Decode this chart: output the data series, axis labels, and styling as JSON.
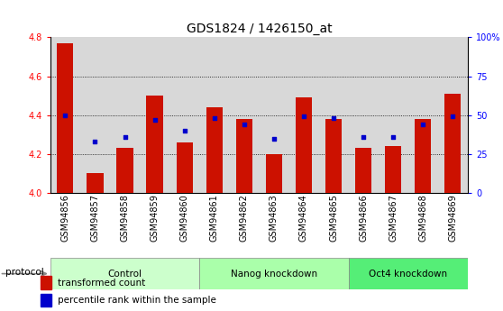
{
  "title": "GDS1824 / 1426150_at",
  "samples": [
    "GSM94856",
    "GSM94857",
    "GSM94858",
    "GSM94859",
    "GSM94860",
    "GSM94861",
    "GSM94862",
    "GSM94863",
    "GSM94864",
    "GSM94865",
    "GSM94866",
    "GSM94867",
    "GSM94868",
    "GSM94869"
  ],
  "transformed_count": [
    4.77,
    4.1,
    4.23,
    4.5,
    4.26,
    4.44,
    4.38,
    4.2,
    4.49,
    4.38,
    4.23,
    4.24,
    4.38,
    4.51
  ],
  "percentile_pct": [
    50,
    33,
    36,
    47,
    40,
    48,
    44,
    35,
    49,
    48,
    36,
    36,
    44,
    49
  ],
  "groups": [
    {
      "label": "Control",
      "start": 0,
      "end": 4,
      "color": "#ccffcc"
    },
    {
      "label": "Nanog knockdown",
      "start": 5,
      "end": 9,
      "color": "#aaffaa"
    },
    {
      "label": "Oct4 knockdown",
      "start": 10,
      "end": 13,
      "color": "#55ee77"
    }
  ],
  "ylim": [
    4.0,
    4.8
  ],
  "yticks_left": [
    4.0,
    4.2,
    4.4,
    4.6,
    4.8
  ],
  "yticks_right": [
    0,
    25,
    50,
    75,
    100
  ],
  "bar_color": "#cc1100",
  "dot_color": "#0000cc",
  "bar_width": 0.55,
  "col_bg_color": "#d8d8d8",
  "title_fontsize": 10,
  "tick_fontsize": 7,
  "label_fontsize": 7.5,
  "grid_lines": [
    4.2,
    4.4,
    4.6
  ]
}
